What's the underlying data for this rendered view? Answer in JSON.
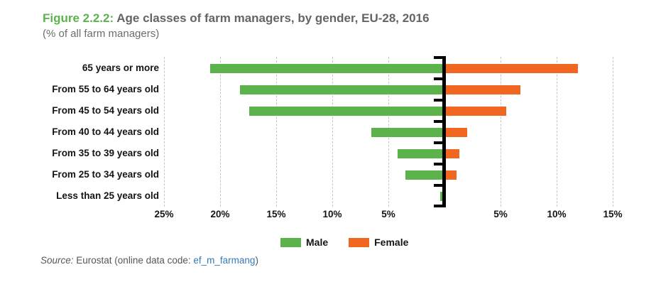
{
  "header": {
    "figure_label": "Figure 2.2.2:",
    "title": "Age classes of farm managers, by gender, EU-28, 2016",
    "subtitle": "(% of all farm managers)"
  },
  "chart_data": {
    "type": "bar",
    "orientation": "horizontal-diverging",
    "title": "Age classes of farm managers, by gender, EU-28, 2016",
    "subtitle": "(% of all farm managers)",
    "x_unit": "%",
    "categories": [
      "65 years or more",
      "From 55 to 64 years old",
      "From 45 to 54 years old",
      "From 40 to 44 years old",
      "From 35 to 39 years old",
      "From 25 to 34 years old",
      "Less than 25 years old"
    ],
    "series": [
      {
        "name": "Male",
        "side": "left",
        "color": "#5CB34C",
        "values": [
          20.9,
          18.2,
          17.4,
          6.5,
          4.2,
          3.5,
          0.4
        ]
      },
      {
        "name": "Female",
        "side": "right",
        "color": "#F16722",
        "values": [
          11.9,
          6.8,
          5.5,
          2.0,
          1.3,
          1.1,
          0.1
        ]
      }
    ],
    "xticks": [
      {
        "pct": -25,
        "label": "25%"
      },
      {
        "pct": -20,
        "label": "20%"
      },
      {
        "pct": -15,
        "label": "15%"
      },
      {
        "pct": -10,
        "label": "10%"
      },
      {
        "pct": -5,
        "label": "5%"
      },
      {
        "pct": 5,
        "label": "5%"
      },
      {
        "pct": 10,
        "label": "10%"
      },
      {
        "pct": 15,
        "label": "15%"
      }
    ],
    "xlim": [
      -25,
      17.5
    ],
    "grid": "dashed-vertical",
    "legend_position": "bottom"
  },
  "source": {
    "prefix": "Source:",
    "text": " Eurostat (online data code: ",
    "link": "ef_m_farmang",
    "suffix": ")"
  },
  "colors": {
    "male": "#5CB34C",
    "female": "#F16722",
    "figure_label_green": "#5CB34C",
    "title_gray": "#636466",
    "link_blue": "#3579B6",
    "gridline_gray": "#c5c5c5",
    "axis_black": "#000000"
  }
}
